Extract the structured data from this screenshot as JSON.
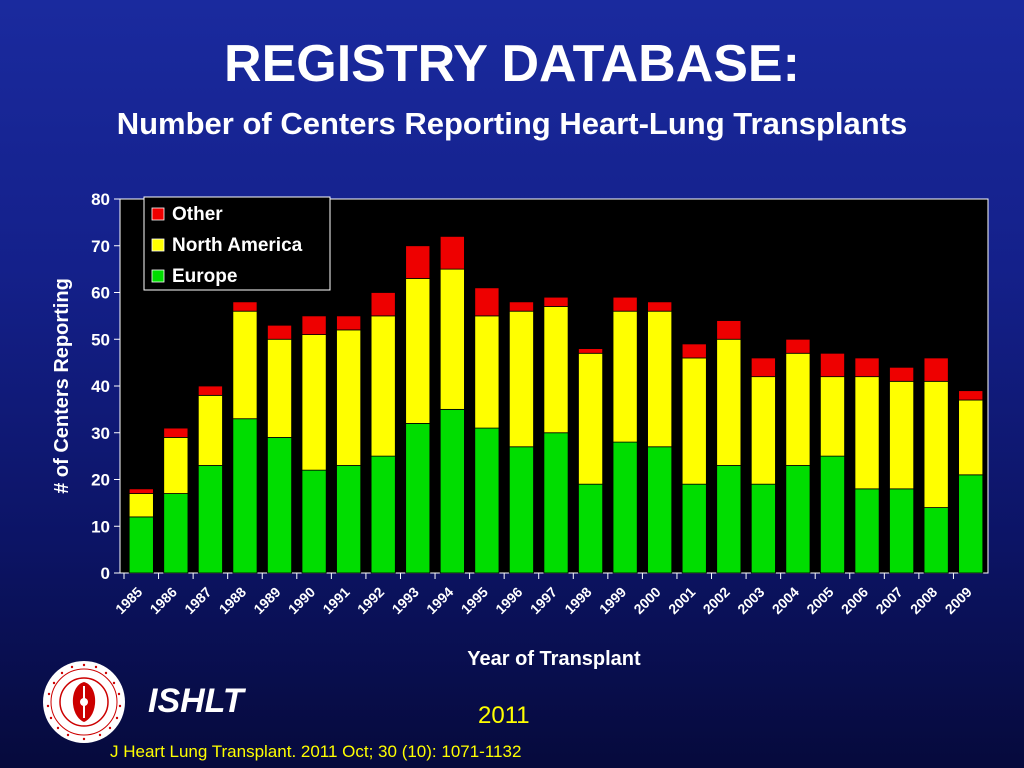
{
  "slide": {
    "title": "REGISTRY DATABASE:",
    "subtitle": "Number of Centers Reporting Heart-Lung Transplants",
    "org_name": "ISHLT",
    "year": "2011",
    "citation": "J Heart Lung Transplant. 2011 Oct; 30 (10): 1071-1132",
    "logo_text": "INTERNATIONAL SOCIETY FOR HEART & LUNG TRANSPLANTATION"
  },
  "colors": {
    "europe": "#00dd00",
    "north_america": "#ffff00",
    "other": "#ee0000",
    "plot_bg": "#000000",
    "text_yellow": "#ffff00"
  },
  "chart_data": {
    "type": "bar",
    "stacked": true,
    "xlabel": "Year of Transplant",
    "ylabel": "# of Centers Reporting",
    "ylim": [
      0,
      80
    ],
    "yticks": [
      0,
      10,
      20,
      30,
      40,
      50,
      60,
      70,
      80
    ],
    "grid": false,
    "legend_position": "top-left",
    "categories": [
      "1985",
      "1986",
      "1987",
      "1988",
      "1989",
      "1990",
      "1991",
      "1992",
      "1993",
      "1994",
      "1995",
      "1996",
      "1997",
      "1998",
      "1999",
      "2000",
      "2001",
      "2002",
      "2003",
      "2004",
      "2005",
      "2006",
      "2007",
      "2008",
      "2009"
    ],
    "series": [
      {
        "name": "Europe",
        "color": "#00dd00",
        "values": [
          12,
          17,
          23,
          33,
          29,
          22,
          23,
          25,
          32,
          35,
          31,
          27,
          30,
          19,
          28,
          27,
          19,
          23,
          19,
          23,
          25,
          18,
          18,
          14,
          21
        ]
      },
      {
        "name": "North America",
        "color": "#ffff00",
        "values": [
          5,
          12,
          15,
          23,
          21,
          29,
          29,
          30,
          31,
          30,
          24,
          29,
          27,
          28,
          28,
          29,
          27,
          27,
          23,
          24,
          17,
          24,
          23,
          27,
          16
        ]
      },
      {
        "name": "Other",
        "color": "#ee0000",
        "values": [
          1,
          2,
          2,
          2,
          3,
          4,
          3,
          5,
          7,
          7,
          6,
          2,
          2,
          1,
          3,
          2,
          3,
          4,
          4,
          3,
          5,
          4,
          3,
          5,
          2
        ]
      }
    ],
    "legend_order": [
      "Other",
      "North America",
      "Europe"
    ]
  }
}
